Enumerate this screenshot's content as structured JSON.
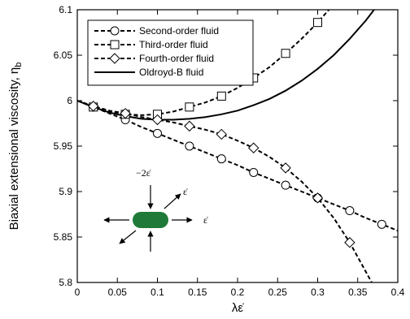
{
  "chart_data": {
    "type": "line",
    "title": "",
    "xlabel": "λε̇",
    "ylabel": "Biaxial extensional viscosity, η",
    "ylabel_subscript": "b",
    "xlim": [
      0,
      0.4
    ],
    "ylim": [
      5.8,
      6.1
    ],
    "x_ticks": [
      0,
      0.05,
      0.1,
      0.15,
      0.2,
      0.25,
      0.3,
      0.35,
      0.4
    ],
    "x_tick_labels": [
      "0",
      "0.05",
      "0.1",
      "0.15",
      "0.2",
      "0.25",
      "0.3",
      "0.35",
      "0.4"
    ],
    "y_ticks": [
      5.8,
      5.85,
      5.9,
      5.95,
      6.0,
      6.05,
      6.1
    ],
    "y_tick_labels": [
      "5.8",
      "5.85",
      "5.9",
      "5.95",
      "6",
      "6.05",
      "6.1"
    ],
    "grid": false,
    "legend_position": "top-left",
    "series": [
      {
        "name": "Second-order fluid",
        "style": "dashed",
        "marker": "circle",
        "curve": {
          "x": [
            0,
            0.02,
            0.04,
            0.06,
            0.08,
            0.1,
            0.12,
            0.14,
            0.16,
            0.18,
            0.2,
            0.22,
            0.24,
            0.26,
            0.28,
            0.3,
            0.32,
            0.34,
            0.36,
            0.38,
            0.4
          ],
          "y": [
            6.0,
            5.993,
            5.986,
            5.979,
            5.971,
            5.964,
            5.957,
            5.95,
            5.943,
            5.936,
            5.929,
            5.921,
            5.914,
            5.907,
            5.9,
            5.893,
            5.886,
            5.879,
            5.871,
            5.864,
            5.857
          ]
        },
        "markers": {
          "x": [
            0.02,
            0.06,
            0.1,
            0.14,
            0.18,
            0.22,
            0.26,
            0.3,
            0.34,
            0.38
          ],
          "y": [
            5.993,
            5.979,
            5.964,
            5.95,
            5.936,
            5.921,
            5.907,
            5.893,
            5.879,
            5.864
          ]
        }
      },
      {
        "name": "Third-order fluid",
        "style": "dashed",
        "marker": "square",
        "curve": {
          "x": [
            0,
            0.02,
            0.04,
            0.06,
            0.08,
            0.1,
            0.12,
            0.14,
            0.16,
            0.18,
            0.2,
            0.22,
            0.24,
            0.26,
            0.28,
            0.3,
            0.31,
            0.32
          ],
          "y": [
            6.0,
            5.993,
            5.988,
            5.985,
            5.984,
            5.985,
            5.988,
            5.993,
            5.998,
            6.005,
            6.014,
            6.025,
            6.037,
            6.052,
            6.068,
            6.086,
            6.096,
            6.106
          ]
        },
        "markers": {
          "x": [
            0.02,
            0.06,
            0.1,
            0.14,
            0.18,
            0.22,
            0.26,
            0.3
          ],
          "y": [
            5.993,
            5.985,
            5.985,
            5.993,
            6.005,
            6.025,
            6.052,
            6.086
          ]
        }
      },
      {
        "name": "Fourth-order fluid",
        "style": "dashed",
        "marker": "diamond",
        "curve": {
          "x": [
            0,
            0.02,
            0.04,
            0.06,
            0.08,
            0.1,
            0.12,
            0.14,
            0.16,
            0.18,
            0.2,
            0.22,
            0.24,
            0.26,
            0.28,
            0.3,
            0.32,
            0.34,
            0.36,
            0.38
          ],
          "y": [
            6.0,
            5.994,
            5.989,
            5.986,
            5.982,
            5.979,
            5.976,
            5.972,
            5.968,
            5.963,
            5.956,
            5.948,
            5.938,
            5.926,
            5.911,
            5.893,
            5.871,
            5.844,
            5.812,
            5.78
          ]
        },
        "markers": {
          "x": [
            0.02,
            0.06,
            0.1,
            0.14,
            0.18,
            0.22,
            0.26,
            0.3,
            0.34
          ],
          "y": [
            5.994,
            5.986,
            5.979,
            5.972,
            5.963,
            5.948,
            5.926,
            5.893,
            5.844
          ]
        }
      },
      {
        "name": "Oldroyd-B fluid",
        "style": "solid",
        "marker": "none",
        "curve": {
          "x": [
            0,
            0.02,
            0.04,
            0.06,
            0.08,
            0.1,
            0.12,
            0.14,
            0.16,
            0.18,
            0.2,
            0.22,
            0.24,
            0.26,
            0.28,
            0.3,
            0.32,
            0.34,
            0.36,
            0.38,
            0.4
          ],
          "y": [
            6.0,
            5.993,
            5.987,
            5.983,
            5.98,
            5.979,
            5.979,
            5.98,
            5.982,
            5.985,
            5.989,
            5.995,
            6.002,
            6.011,
            6.022,
            6.035,
            6.05,
            6.068,
            6.088,
            6.111,
            6.137
          ]
        },
        "markers": {
          "x": [],
          "y": []
        }
      }
    ],
    "inset": {
      "top_label": "−2ε̇",
      "diag_label": "ε̇",
      "right_label": "ε̇",
      "shape_color": "#1f7a3a"
    }
  }
}
